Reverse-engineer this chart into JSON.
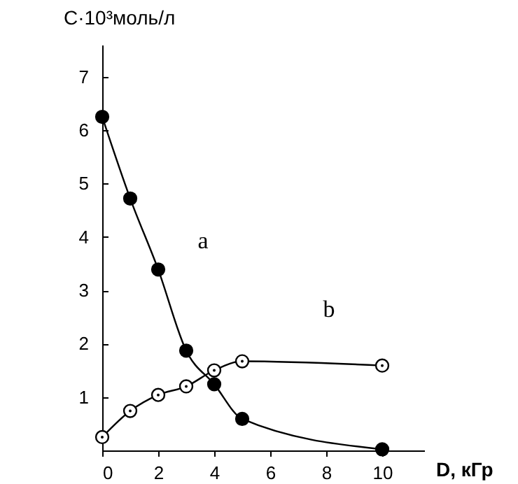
{
  "chart_data": {
    "type": "line",
    "xlabel": "D, кГр",
    "ylabel": "C·10³моль/л",
    "x": [
      0,
      1,
      2,
      3,
      4,
      5,
      10
    ],
    "xlim": [
      0,
      11.5
    ],
    "ylim": [
      0,
      7.6
    ],
    "xticks": [
      0,
      2,
      4,
      6,
      8,
      10
    ],
    "yticks": [
      1,
      2,
      3,
      4,
      5,
      6,
      7
    ],
    "grid": false,
    "line_style": "solid",
    "series": [
      {
        "name": "a",
        "color": "#000000",
        "marker": "circle",
        "values": [
          6.25,
          4.72,
          3.39,
          1.87,
          1.24,
          0.59,
          0.02
        ]
      },
      {
        "name": "b",
        "color": "#000000",
        "marker": "circle-open",
        "values": [
          0.25,
          0.74,
          1.04,
          1.2,
          1.5,
          1.67,
          1.59
        ]
      }
    ]
  }
}
